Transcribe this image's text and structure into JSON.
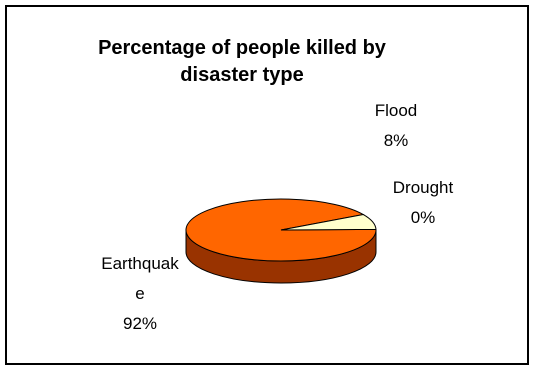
{
  "chart_data": {
    "type": "pie",
    "title_lines": [
      "Percentage of people killed by",
      "disaster type"
    ],
    "slices": [
      {
        "name": "Earthquake",
        "value": 92,
        "label_lines": [
          "Earthquak",
          "e"
        ],
        "pct_label": "92%",
        "color": "#FF6600",
        "side_color": "#993300"
      },
      {
        "name": "Flood",
        "value": 8,
        "label_lines": [
          "Flood"
        ],
        "pct_label": "8%",
        "color": "#FFFFCC",
        "side_color": "#999966"
      },
      {
        "name": "Drought",
        "value": 0,
        "label_lines": [
          "Drought"
        ],
        "pct_label": "0%",
        "color": "#FFFFFF",
        "side_color": "#999999"
      }
    ]
  }
}
